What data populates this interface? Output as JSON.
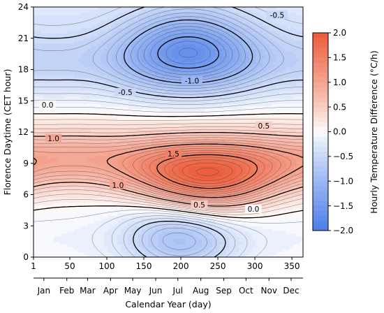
{
  "chart_data": {
    "type": "heatmap",
    "subtype": "filled-contour",
    "title": "",
    "xlabel": "Calendar Year (day)",
    "ylabel": "Florence Daytime (CET hour)",
    "colorbar_label": "Hourly Temperature Difference (°C/h)",
    "xlim": [
      1,
      365
    ],
    "ylim": [
      0,
      24
    ],
    "zlim": [
      -2.0,
      2.0
    ],
    "x_ticks": [
      1,
      50,
      100,
      150,
      200,
      250,
      300,
      350
    ],
    "y_ticks": [
      0,
      3,
      6,
      9,
      12,
      15,
      18,
      21,
      24
    ],
    "months": [
      "Jan",
      "Feb",
      "Mar",
      "Apr",
      "May",
      "Jun",
      "Jul",
      "Aug",
      "Sep",
      "Oct",
      "Nov",
      "Dec"
    ],
    "month_days": [
      15,
      46,
      74,
      105,
      135,
      166,
      196,
      227,
      258,
      288,
      319,
      349
    ],
    "colorbar_ticks": [
      "2.0",
      "1.5",
      "1.0",
      "0.5",
      "0.0",
      "−0.5",
      "−1.0",
      "−1.5",
      "−2.0"
    ],
    "colorbar_tick_values": [
      2.0,
      1.5,
      1.0,
      0.5,
      0.0,
      -0.5,
      -1.0,
      -1.5,
      -2.0
    ],
    "colormap": {
      "negative_end": "#4c7ee8",
      "zero": "#ffffff",
      "positive_end": "#ec5c3a"
    },
    "contour_step": 0.1,
    "labeled_levels": [
      {
        "text": "-0.5",
        "value": -0.5,
        "day": 330,
        "hour": 23.2
      },
      {
        "text": "-1.0",
        "value": -1.0,
        "day": 215,
        "hour": 16.9
      },
      {
        "text": "-0.5",
        "value": -0.5,
        "day": 125,
        "hour": 15.8
      },
      {
        "text": "0.0",
        "value": 0.0,
        "day": 20,
        "hour": 14.6
      },
      {
        "text": "0.5",
        "value": 0.5,
        "day": 312,
        "hour": 12.6
      },
      {
        "text": "1.0",
        "value": 1.0,
        "day": 28,
        "hour": 11.4
      },
      {
        "text": "1.5",
        "value": 1.5,
        "day": 190,
        "hour": 9.9
      },
      {
        "text": "1.0",
        "value": 1.0,
        "day": 115,
        "hour": 6.9
      },
      {
        "text": "0.5",
        "value": 0.5,
        "day": 225,
        "hour": 5.0
      },
      {
        "text": "0.0",
        "value": 0.0,
        "day": 298,
        "hour": 4.6
      }
    ],
    "field_features": [
      {
        "name": "night",
        "center_hour": 1.8,
        "value_winter": -0.25,
        "value_summer": -0.9,
        "peak_day": 200
      },
      {
        "name": "morning-rise",
        "center_hour": 8.5,
        "value_winter": 0.95,
        "value_summer": 1.95,
        "peak_day": 235
      },
      {
        "name": "afternoon-fall",
        "center_hour": 19.0,
        "value_winter": -0.55,
        "value_summer": -1.6,
        "peak_day": 210
      }
    ]
  }
}
